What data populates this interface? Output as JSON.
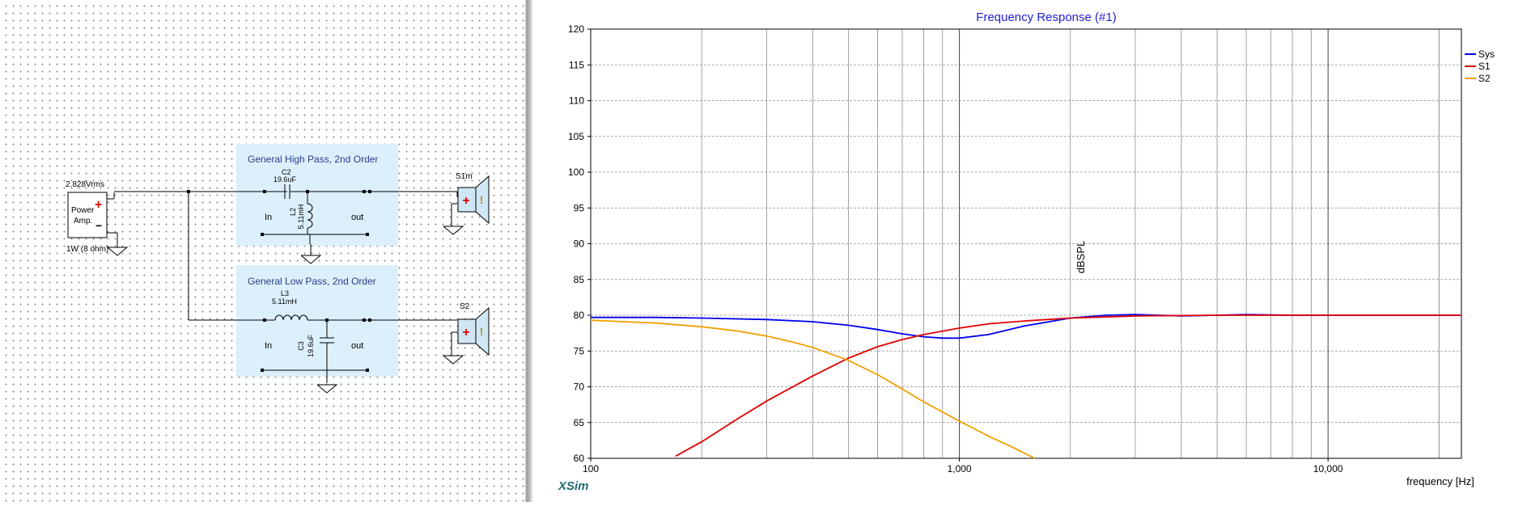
{
  "schematic": {
    "source": {
      "voltage": "2.828Vrms",
      "label_line1": "Power",
      "label_line2": "Amp.",
      "plus": "+",
      "minus": "−",
      "rating": "1W (8 ohm)"
    },
    "high_pass": {
      "title": "General High Pass, 2nd Order",
      "cap_name": "C2",
      "cap_value": "19.6uF",
      "ind_name": "L2",
      "ind_value": "5.11mH",
      "in_label": "In",
      "out_label": "out"
    },
    "low_pass": {
      "title": "General Low Pass, 2nd Order",
      "ind_name": "L3",
      "ind_value": "5.11mH",
      "cap_name": "C3",
      "cap_value": "19.6uF",
      "in_label": "In",
      "out_label": "out"
    },
    "speaker1": {
      "label": "S1m"
    },
    "speaker2": {
      "label": "S2"
    },
    "colors": {
      "block_fill": "#dcf0fb",
      "title_text": "#2a3c8c",
      "plus": "#e00000",
      "speaker_fill": "#cfe7f5"
    }
  },
  "app": {
    "brand": "XSim",
    "brand_color": "#1f6e77"
  },
  "chart_data": {
    "type": "line",
    "title": "Frequency Response (#1)",
    "xlabel": "frequency [Hz]",
    "ylabel": "dBSPL",
    "xscale": "log",
    "xlim": [
      100,
      23000
    ],
    "ylim": [
      60,
      120
    ],
    "yticks": [
      60,
      65,
      70,
      75,
      80,
      85,
      90,
      95,
      100,
      105,
      110,
      115,
      120
    ],
    "xtick_labels": [
      {
        "value": 100,
        "label": "100"
      },
      {
        "value": 1000,
        "label": "1,000"
      },
      {
        "value": 10000,
        "label": "10,000"
      }
    ],
    "grid": true,
    "legend": "top-right",
    "title_color": "#1e1ed2",
    "series": [
      {
        "name": "Sys",
        "color": "#0000ee",
        "x": [
          100,
          150,
          200,
          300,
          400,
          500,
          600,
          700,
          800,
          900,
          1000,
          1200,
          1500,
          2000,
          2500,
          3000,
          4000,
          5000,
          6000,
          8000,
          10000,
          15000,
          23000
        ],
        "y": [
          79.7,
          79.7,
          79.6,
          79.4,
          79.1,
          78.6,
          78.0,
          77.4,
          77.0,
          76.8,
          76.8,
          77.3,
          78.5,
          79.6,
          80.0,
          80.1,
          79.9,
          80.0,
          80.1,
          80.0,
          80.0,
          80.0,
          80.0
        ]
      },
      {
        "name": "S1",
        "color": "#e00000",
        "x": [
          170,
          200,
          250,
          300,
          400,
          500,
          600,
          700,
          800,
          1000,
          1200,
          1500,
          2000,
          3000,
          5000,
          10000,
          23000
        ],
        "y": [
          60.3,
          62.3,
          65.5,
          68.0,
          71.5,
          74.0,
          75.6,
          76.6,
          77.3,
          78.2,
          78.8,
          79.2,
          79.6,
          79.9,
          80.0,
          80.0,
          80.0
        ]
      },
      {
        "name": "S2",
        "color": "#f0a000",
        "x": [
          100,
          150,
          200,
          250,
          300,
          350,
          400,
          500,
          600,
          700,
          800,
          1000,
          1200,
          1400,
          1600
        ],
        "y": [
          79.3,
          78.9,
          78.4,
          77.8,
          77.1,
          76.3,
          75.5,
          73.7,
          71.7,
          69.7,
          67.9,
          65.2,
          63.1,
          61.5,
          60.0
        ]
      }
    ]
  }
}
